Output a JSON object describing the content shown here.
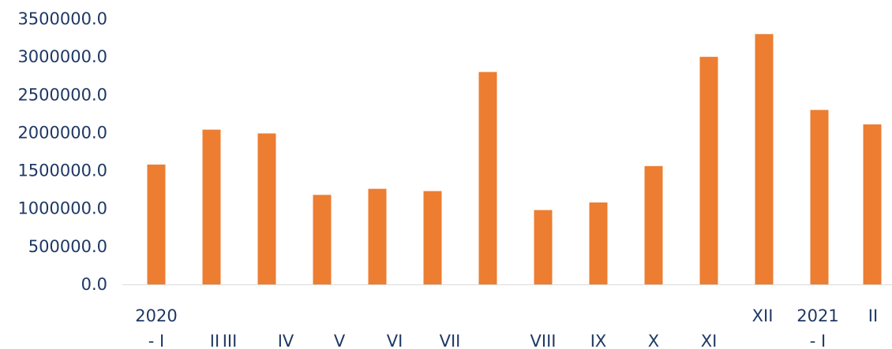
{
  "chart_data": {
    "type": "bar",
    "title": "",
    "xlabel": "",
    "ylabel": "",
    "ylim": [
      0,
      3500000
    ],
    "yticks": [
      "0.0",
      "500000.0",
      "1000000.0",
      "1500000.0",
      "2000000.0",
      "2500000.0",
      "3000000.0",
      "3500000.0"
    ],
    "grid": false,
    "legend": "none",
    "bar_color": "#ed7d31",
    "text_color": "#1f3864",
    "axis_color": "#d9d9d9",
    "categories": [
      {
        "top": "2020",
        "bottom": "- I"
      },
      {
        "top": "",
        "bottom": "II"
      },
      {
        "top": "",
        "bottom": "III"
      },
      {
        "top": "",
        "bottom": "IV"
      },
      {
        "top": "",
        "bottom": "V"
      },
      {
        "top": "",
        "bottom": "VI"
      },
      {
        "top": "",
        "bottom": "VII"
      },
      {
        "top": "",
        "bottom": "VIII"
      },
      {
        "top": "",
        "bottom": "IX"
      },
      {
        "top": "",
        "bottom": "X"
      },
      {
        "top": "",
        "bottom": "XI"
      },
      {
        "top": "XII",
        "bottom": ""
      },
      {
        "top": "2021",
        "bottom": "- I"
      },
      {
        "top": "II",
        "bottom": ""
      }
    ],
    "values": [
      1580000,
      2040000,
      1990000,
      1180000,
      1260000,
      1230000,
      2800000,
      980000,
      1080000,
      1560000,
      3000000,
      3300000,
      2300000,
      2110000
    ]
  }
}
